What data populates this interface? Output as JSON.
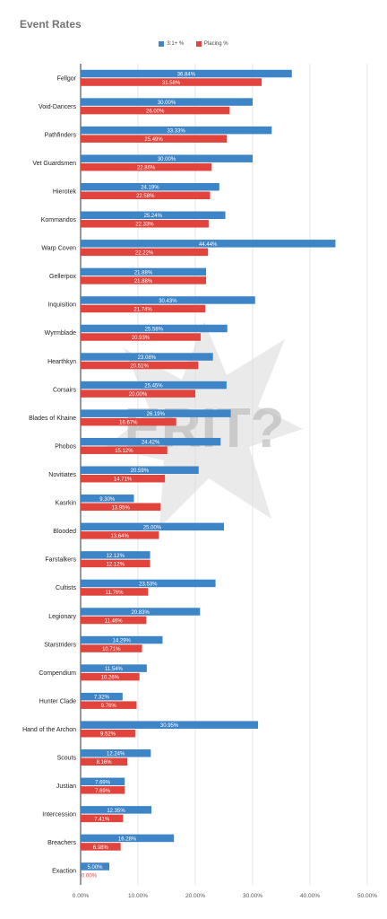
{
  "chart_data": {
    "type": "bar",
    "orientation": "horizontal",
    "title": "Event Rates",
    "categories": [
      "Fellgor",
      "Void-Dancers",
      "Pathfinders",
      "Vet Guardsmen",
      "Hierotek",
      "Kommandos",
      "Warp Coven",
      "Gellerpox",
      "Inquisition",
      "Wyrmblade",
      "Hearthkyn",
      "Corsairs",
      "Blades of Khaine",
      "Phobos",
      "Novitiates",
      "Kasrkin",
      "Blooded",
      "Farstalkers",
      "Cultists",
      "Legionary",
      "Starstriders",
      "Compendium",
      "Hunter Clade",
      "Hand of the Archon",
      "Scouts",
      "Justian",
      "Intercession",
      "Breachers",
      "Exaction"
    ],
    "series": [
      {
        "name": "3:1+ %",
        "color": "#3d85c6",
        "values": [
          36.84,
          30.0,
          33.33,
          30.0,
          24.19,
          25.24,
          44.44,
          21.88,
          30.43,
          25.58,
          23.08,
          25.45,
          26.19,
          24.42,
          20.59,
          9.3,
          25.0,
          12.12,
          23.53,
          20.83,
          14.29,
          11.54,
          7.32,
          30.95,
          12.24,
          7.69,
          12.35,
          16.28,
          5.0
        ],
        "labels": [
          "36.84%",
          "30.00%",
          "33.33%",
          "30.00%",
          "24.19%",
          "25.24%",
          "44.44%",
          "21.88%",
          "30.43%",
          "25.58%",
          "23.08%",
          "25.45%",
          "26.19%",
          "24.42%",
          "20.59%",
          "9.30%",
          "25.00%",
          "12.12%",
          "23.53%",
          "20.83%",
          "14.29%",
          "11.54%",
          "7.32%",
          "30.95%",
          "12.24%",
          "7.69%",
          "12.35%",
          "16.28%",
          "5.00%"
        ]
      },
      {
        "name": "Placing %",
        "color": "#e0443c",
        "values": [
          31.58,
          26.0,
          25.49,
          22.86,
          22.58,
          22.33,
          22.22,
          21.88,
          21.74,
          20.93,
          20.51,
          20.0,
          16.67,
          15.12,
          14.71,
          13.95,
          13.64,
          12.12,
          11.76,
          11.46,
          10.71,
          10.26,
          9.76,
          9.52,
          8.16,
          7.69,
          7.41,
          6.98,
          0.0
        ],
        "labels": [
          "31.58%",
          "26.00%",
          "25.49%",
          "22.86%",
          "22.58%",
          "22.33%",
          "22.22%",
          "21.88%",
          "21.74%",
          "20.93%",
          "20.51%",
          "20.00%",
          "16.67%",
          "15.12%",
          "14.71%",
          "13.95%",
          "13.64%",
          "12.12%",
          "11.76%",
          "11.46%",
          "10.71%",
          "10.26%",
          "9.76%",
          "9.52%",
          "8.16%",
          "7.69%",
          "7.41%",
          "6.98%",
          "0.00%"
        ]
      }
    ],
    "xlim": [
      0,
      50
    ],
    "xticks": [
      "0.00%",
      "10.00%",
      "20.00%",
      "30.00%",
      "40.00%",
      "50.00%"
    ],
    "grid": true,
    "legend": "top-center"
  },
  "watermark": {
    "text": "ERIT?"
  }
}
